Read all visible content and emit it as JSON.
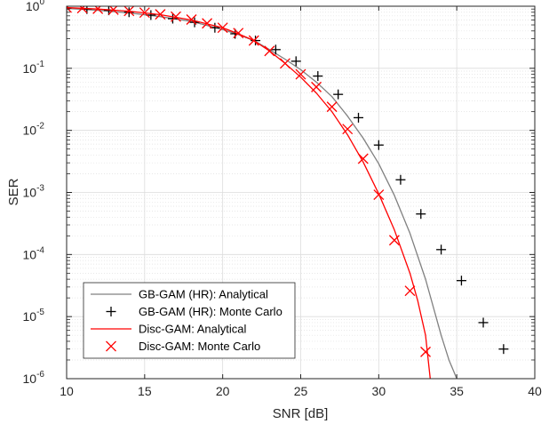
{
  "chart_data": {
    "type": "line",
    "title": "",
    "xlabel": "SNR [dB]",
    "ylabel": "SER",
    "xlim": [
      10,
      40
    ],
    "ylim": [
      1e-06,
      1
    ],
    "yscale": "log",
    "grid": true,
    "minor_grid": true,
    "legend_position": "bottom-left",
    "x_ticks": [
      "10",
      "15",
      "20",
      "25",
      "30",
      "35",
      "40"
    ],
    "y_ticks": [
      {
        "base": "10",
        "exp": "-6",
        "value": 1e-06
      },
      {
        "base": "10",
        "exp": "-5",
        "value": 1e-05
      },
      {
        "base": "10",
        "exp": "-4",
        "value": 0.0001
      },
      {
        "base": "10",
        "exp": "-3",
        "value": 0.001
      },
      {
        "base": "10",
        "exp": "-2",
        "value": 0.01
      },
      {
        "base": "10",
        "exp": "-1",
        "value": 0.1
      },
      {
        "base": "10",
        "exp": "0",
        "value": 1
      }
    ],
    "series": [
      {
        "name": "GB-GAM (HR): Analytical",
        "style": "line",
        "color": "#808080",
        "x": [
          10,
          12,
          14,
          16,
          18,
          20,
          21,
          22,
          23,
          24,
          25,
          26,
          27,
          28,
          29,
          30,
          31,
          32,
          33,
          34,
          34.5,
          35,
          35.3
        ],
        "y": [
          0.92,
          0.86,
          0.78,
          0.68,
          0.57,
          0.42,
          0.35,
          0.28,
          0.2,
          0.14,
          0.095,
          0.06,
          0.035,
          0.017,
          0.0075,
          0.0029,
          0.0009,
          0.00022,
          4e-05,
          5e-06,
          2e-06,
          1e-06,
          6e-07
        ]
      },
      {
        "name": "GB-GAM (HR): Monte Carlo",
        "style": "plus",
        "color": "#000000",
        "x": [
          10,
          11.3,
          12.7,
          14,
          15.4,
          16.8,
          18.2,
          19.5,
          20.8,
          22.1,
          23.4,
          24.7,
          26.1,
          27.4,
          28.7,
          30,
          31.4,
          32.7,
          34,
          35.3,
          36.7,
          38
        ],
        "y": [
          0.93,
          0.9,
          0.86,
          0.8,
          0.72,
          0.63,
          0.55,
          0.45,
          0.36,
          0.28,
          0.2,
          0.13,
          0.075,
          0.038,
          0.016,
          0.0058,
          0.0016,
          0.00045,
          0.00012,
          3.8e-05,
          8e-06,
          3e-06
        ]
      },
      {
        "name": "Disc-GAM: Analytical",
        "style": "line",
        "color": "#ff0000",
        "x": [
          10,
          12,
          14,
          16,
          18,
          20,
          21,
          22,
          23,
          24,
          25,
          26,
          27,
          28,
          29,
          30,
          31,
          32,
          32.5,
          33,
          33.3
        ],
        "y": [
          0.95,
          0.9,
          0.83,
          0.73,
          0.6,
          0.45,
          0.36,
          0.28,
          0.19,
          0.12,
          0.072,
          0.04,
          0.02,
          0.0085,
          0.0031,
          0.00095,
          0.00025,
          5e-05,
          1.8e-05,
          5e-06,
          1e-06
        ]
      },
      {
        "name": "Disc-GAM: Monte Carlo",
        "style": "cross",
        "color": "#ff0000",
        "x": [
          10,
          11,
          12,
          13,
          14,
          15,
          16,
          17,
          18,
          19,
          20,
          21,
          22,
          23,
          24,
          25,
          26,
          27,
          28,
          29,
          30,
          31,
          32,
          33
        ],
        "y": [
          0.95,
          0.93,
          0.91,
          0.88,
          0.84,
          0.79,
          0.74,
          0.68,
          0.61,
          0.53,
          0.45,
          0.37,
          0.28,
          0.19,
          0.12,
          0.08,
          0.05,
          0.024,
          0.0105,
          0.0035,
          0.00092,
          0.00017,
          2.6e-05,
          2.7e-06
        ]
      }
    ]
  }
}
